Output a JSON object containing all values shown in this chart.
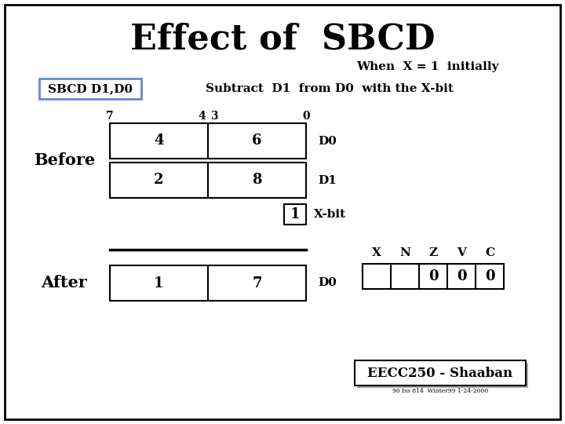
{
  "title": "Effect of  SBCD",
  "subtitle": "When  X = 1  initially",
  "instruction_label": "SBCD D1,D0",
  "instruction_desc": "Subtract  D1  from D0  with the X-bit",
  "before_d0": [
    "4",
    "6"
  ],
  "before_d1": [
    "2",
    "8"
  ],
  "xbit_val": "1",
  "xbit_label": "X-bit",
  "after_d0_label": "D0",
  "after_vals": [
    "1",
    "7"
  ],
  "ccr_labels": [
    "X",
    "N",
    "Z",
    "V",
    "C"
  ],
  "ccr_vals": [
    "",
    "",
    "0",
    "0",
    "0"
  ],
  "before_label": "Before",
  "after_section_label": "After",
  "d0_label": "D0",
  "d1_label": "D1",
  "footer": "EECC250 - Shaaban",
  "footer_small": "90 Iss 814  Winter99 1-24-2000",
  "sbcd_box_color": "#6688cc",
  "title_fontsize": 32,
  "subtitle_fontsize": 11,
  "label_fontsize": 11,
  "body_fontsize": 12,
  "cell_fontsize": 13,
  "before_after_fontsize": 15,
  "footer_fontsize": 12,
  "bit_label_fontsize": 10
}
